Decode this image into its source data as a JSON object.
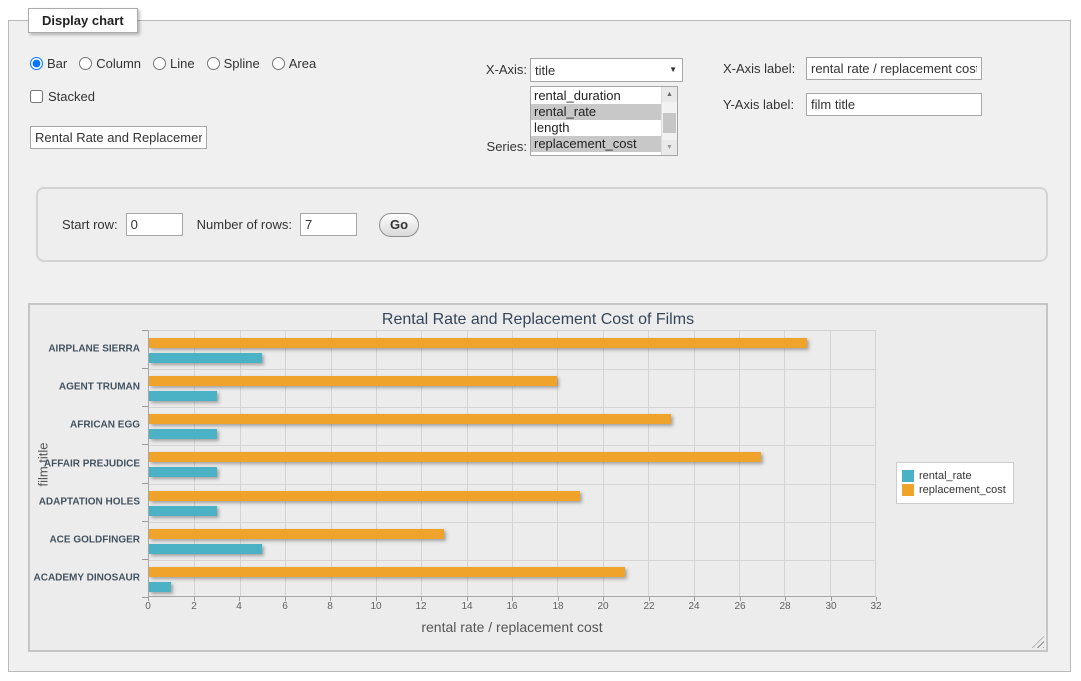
{
  "panel": {
    "legend": "Display chart"
  },
  "chart_types": {
    "options": [
      {
        "label": "Bar",
        "checked": true
      },
      {
        "label": "Column",
        "checked": false
      },
      {
        "label": "Line",
        "checked": false
      },
      {
        "label": "Spline",
        "checked": false
      },
      {
        "label": "Area",
        "checked": false
      }
    ]
  },
  "stacked": {
    "label": "Stacked",
    "checked": false
  },
  "title_input": {
    "value": "Rental Rate and Replacement Cost of Films"
  },
  "x_axis": {
    "label": "X-Axis:",
    "selected": "title"
  },
  "series_field": {
    "label": "Series:",
    "options": [
      {
        "label": "rental_duration",
        "selected": false
      },
      {
        "label": "rental_rate",
        "selected": true
      },
      {
        "label": "length",
        "selected": false
      },
      {
        "label": "replacement_cost",
        "selected": true
      }
    ]
  },
  "x_axis_label_field": {
    "label": "X-Axis label:",
    "value": "rental rate / replacement cost"
  },
  "y_axis_label_field": {
    "label": "Y-Axis label:",
    "value": "film title"
  },
  "row_controls": {
    "start_row_label": "Start row:",
    "start_row_value": "0",
    "num_rows_label": "Number of rows:",
    "num_rows_value": "7",
    "go_label": "Go"
  },
  "icons": {
    "dropdown": "▼",
    "scroll_up": "▲",
    "scroll_down": "▼"
  },
  "chart_data": {
    "type": "bar",
    "title": "Rental Rate and Replacement Cost of Films",
    "xlabel": "rental rate / replacement cost",
    "ylabel": "film title",
    "categories": [
      "AIRPLANE SIERRA",
      "AGENT TRUMAN",
      "AFRICAN EGG",
      "AFFAIR PREJUDICE",
      "ADAPTATION HOLES",
      "ACE GOLDFINGER",
      "ACADEMY DINOSAUR"
    ],
    "series": [
      {
        "name": "rental_rate",
        "color": "#4BB2C5",
        "values": [
          4.99,
          2.99,
          2.99,
          2.99,
          2.99,
          4.99,
          0.99
        ]
      },
      {
        "name": "replacement_cost",
        "color": "#EFA32B",
        "values": [
          28.99,
          17.99,
          22.99,
          26.99,
          18.99,
          12.99,
          20.99
        ]
      }
    ],
    "xlim": [
      0,
      32
    ],
    "xticks": [
      0,
      2,
      4,
      6,
      8,
      10,
      12,
      14,
      16,
      18,
      20,
      22,
      24,
      26,
      28,
      30,
      32
    ],
    "grid": true,
    "legend_position": "right",
    "bar_draw_order_top_to_bottom": [
      "replacement_cost",
      "rental_rate"
    ]
  }
}
